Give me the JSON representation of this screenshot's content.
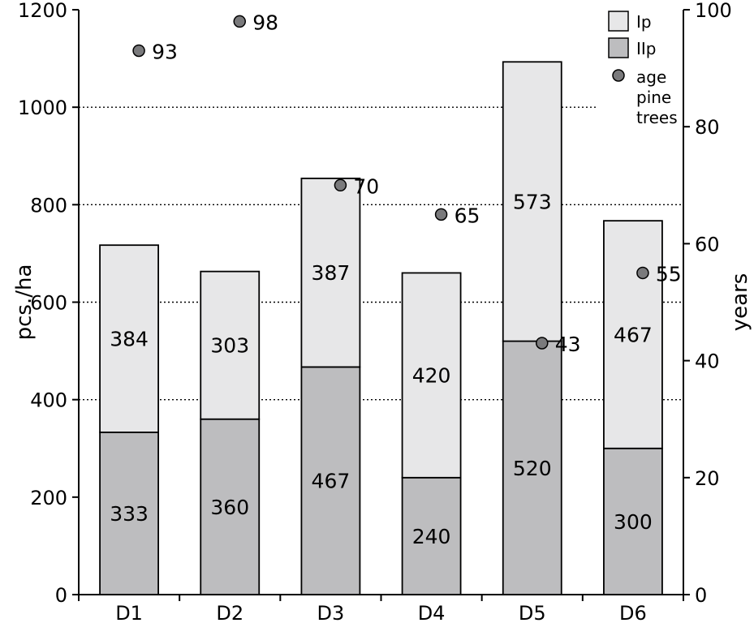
{
  "chart_data": {
    "type": "bar",
    "stacked": true,
    "categories": [
      "D1",
      "D2",
      "D3",
      "D4",
      "D5",
      "D6"
    ],
    "series": [
      {
        "name": "IIp",
        "values": [
          333,
          360,
          467,
          240,
          520,
          300
        ],
        "color": "#bdbdbf"
      },
      {
        "name": "Ip",
        "values": [
          384,
          303,
          387,
          420,
          573,
          467
        ],
        "color": "#e7e7e8"
      }
    ],
    "secondary_series": {
      "name": "age pine trees",
      "type": "scatter",
      "axis": "right",
      "values": [
        93,
        98,
        70,
        65,
        43,
        55
      ],
      "color": "#7a7a7c"
    },
    "ylabel": "pcs./ha",
    "ylim": [
      0,
      1200
    ],
    "yticks": [
      0,
      200,
      400,
      600,
      800,
      1000,
      1200
    ],
    "y2label": "years",
    "y2lim": [
      0,
      100
    ],
    "y2ticks": [
      0,
      20,
      40,
      60,
      80,
      100
    ],
    "grid": "horizontal dotted at 400, 600, 800, 1000",
    "legend": {
      "position": "top-right",
      "entries": [
        "Ip",
        "IIp",
        "age",
        "pine",
        "trees"
      ]
    }
  }
}
